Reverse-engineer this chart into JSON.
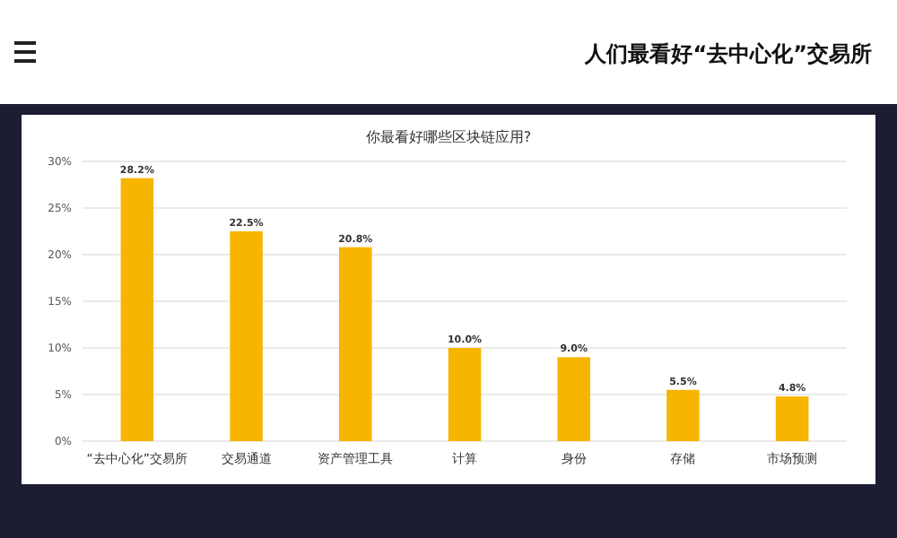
{
  "chart_data": {
    "type": "bar",
    "title": "人们最看好“去中心化”交易所",
    "subtitle": "你最看好哪些区块链应用?",
    "categories": [
      "“去中心化”交易所",
      "交易通道",
      "资产管理工具",
      "计算",
      "身份",
      "存储",
      "市场预测"
    ],
    "values": [
      28.2,
      22.5,
      20.8,
      10.0,
      9.0,
      5.5,
      4.8
    ],
    "value_labels": [
      "28.2%",
      "22.5%",
      "20.8%",
      "10.0%",
      "9.0%",
      "5.5%",
      "4.8%"
    ],
    "color": "#f7b500",
    "ylim": [
      0,
      30
    ],
    "yticks": [
      {
        "value": 0,
        "label": "0%"
      },
      {
        "value": 5,
        "label": "5%"
      },
      {
        "value": 10,
        "label": "10%"
      },
      {
        "value": 15,
        "label": "15%"
      },
      {
        "value": 20,
        "label": "20%"
      },
      {
        "value": 25,
        "label": "25%"
      },
      {
        "value": 30,
        "label": "30%"
      }
    ],
    "grid": "y"
  }
}
